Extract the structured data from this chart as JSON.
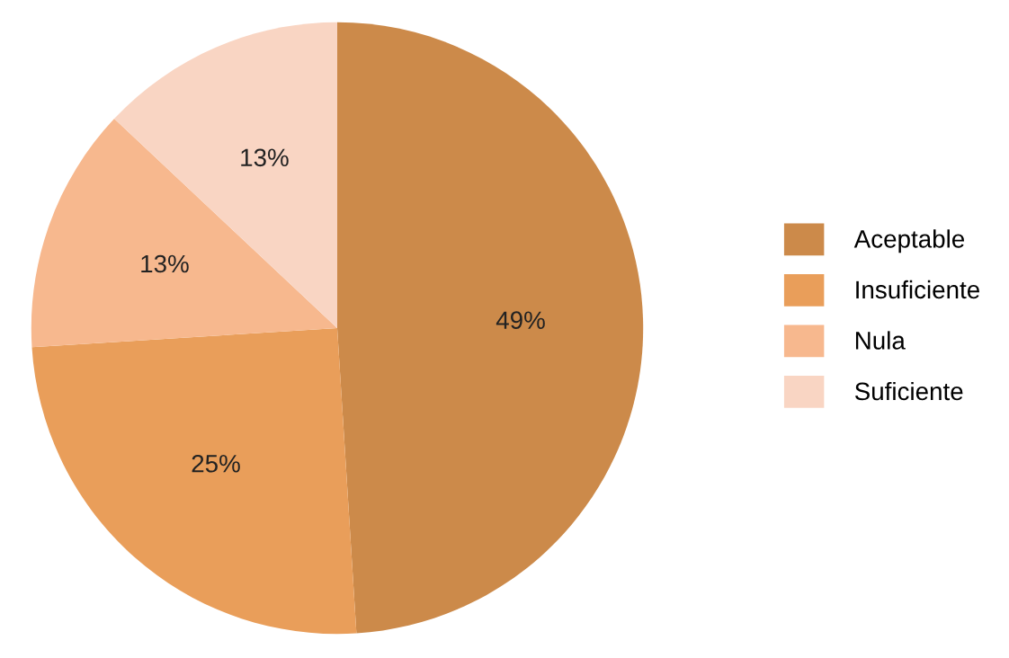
{
  "chart_data": {
    "type": "pie",
    "categories": [
      "Aceptable",
      "Insuficiente",
      "Nula",
      "Suficiente"
    ],
    "values": [
      49,
      25,
      13,
      13
    ],
    "colors": [
      "#cc8a4a",
      "#e99e5a",
      "#f7b88e",
      "#f9d5c3"
    ],
    "value_labels": [
      "49%",
      "25%",
      "13%",
      "13%"
    ],
    "legend": "right"
  }
}
